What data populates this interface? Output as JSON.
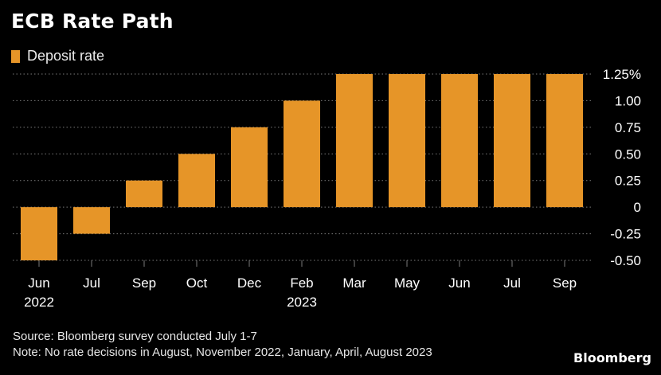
{
  "chart_data": {
    "type": "bar",
    "title": "ECB Rate Path",
    "categories": [
      "Jun",
      "Jul",
      "Sep",
      "Oct",
      "Dec",
      "Feb",
      "Mar",
      "May",
      "Jun",
      "Jul",
      "Sep"
    ],
    "category_sublabels": [
      "2022",
      "",
      "",
      "",
      "",
      "2023",
      "",
      "",
      "",
      "",
      ""
    ],
    "series": [
      {
        "name": "Deposit rate",
        "values": [
          -0.5,
          -0.25,
          0.25,
          0.5,
          0.75,
          1.0,
          1.25,
          1.25,
          1.25,
          1.25,
          1.25
        ],
        "color": "#e69528"
      }
    ],
    "y_ticks": [
      {
        "value": 1.25,
        "label": "1.25%"
      },
      {
        "value": 1.0,
        "label": "1.00"
      },
      {
        "value": 0.75,
        "label": "0.75"
      },
      {
        "value": 0.5,
        "label": "0.50"
      },
      {
        "value": 0.25,
        "label": "0.25"
      },
      {
        "value": 0,
        "label": "0"
      },
      {
        "value": -0.25,
        "label": "-0.25"
      },
      {
        "value": -0.5,
        "label": "-0.50"
      }
    ],
    "ylim": [
      -0.5,
      1.25
    ],
    "xlabel": "",
    "ylabel": "",
    "grid": true,
    "legend": "top-left"
  },
  "footer": {
    "source": "Source: Bloomberg survey conducted July 1-7",
    "note": "Note: No rate decisions in August, November 2022, January, April, August 2023"
  },
  "brand": "Bloomberg",
  "colors": {
    "background": "#000000",
    "bar": "#e69528",
    "grid": "#7a7a7a",
    "text": "#ffffff"
  }
}
